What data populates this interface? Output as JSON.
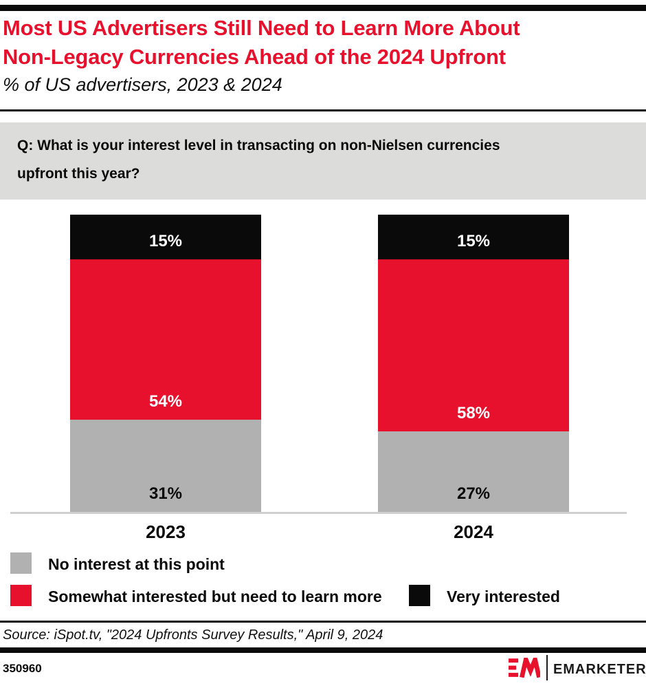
{
  "header": {
    "title": "Most US Advertisers Still Need to Learn More About\nNon-Legacy Currencies Ahead of the 2024 Upfront",
    "subtitle": "% of US advertisers, 2023 & 2024"
  },
  "question": {
    "text": "Q: What is your interest level in transacting on non-Nielsen currencies\nupfront this year?"
  },
  "chart_data": {
    "type": "bar",
    "stacked": true,
    "orientation": "vertical",
    "categories": [
      "2023",
      "2024"
    ],
    "series": [
      {
        "name": "No interest at this point",
        "values": [
          31,
          27
        ],
        "color": "#b1b1b1",
        "label_color": "#0a0a0a"
      },
      {
        "name": "Somewhat interested but need to learn more",
        "values": [
          54,
          58
        ],
        "color": "#e8112d",
        "label_color": "#ffffff"
      },
      {
        "name": "Very interested",
        "values": [
          15,
          15
        ],
        "color": "#0a0a0a",
        "label_color": "#ffffff"
      }
    ],
    "value_suffix": "%",
    "ylim": [
      0,
      100
    ],
    "grid": false,
    "legend_position": "bottom"
  },
  "footer": {
    "source": "Source: iSpot.tv, \"2024 Upfronts Survey Results,\" April 9, 2024",
    "chart_id": "350960",
    "brand": "EMARKETER"
  },
  "colors": {
    "accent_red": "#e8112d",
    "bar_gray": "#b1b1b1",
    "bar_black": "#0a0a0a",
    "question_box_bg": "#dcdcda",
    "axis_line": "#cfcfcf"
  }
}
